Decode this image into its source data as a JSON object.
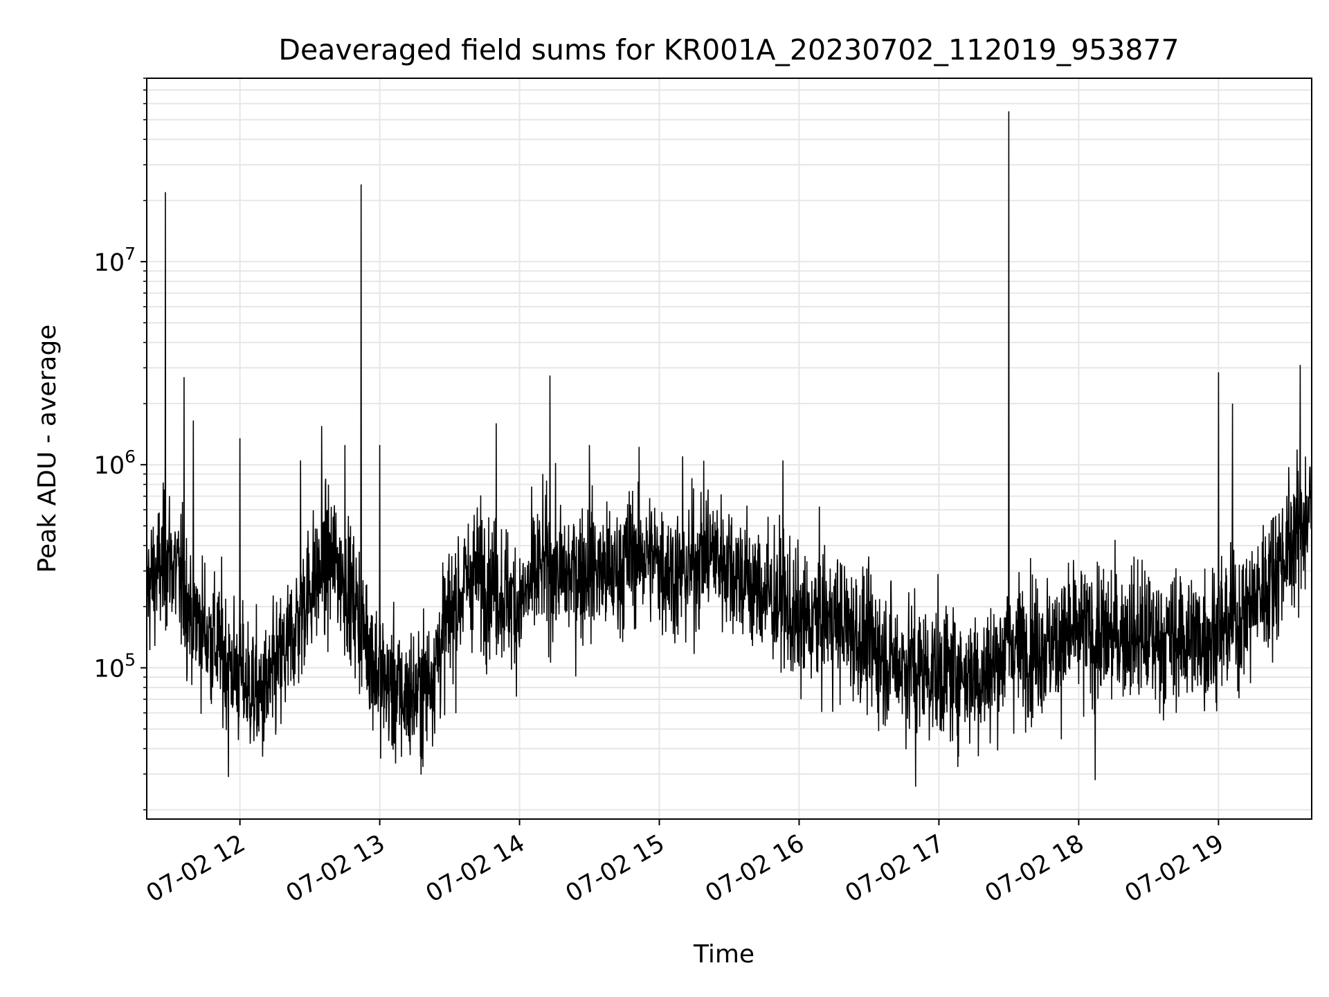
{
  "chart_data": {
    "type": "line",
    "title": "Deaveraged field sums for KR001A_20230702_112019_953877",
    "xlabel": "Time",
    "ylabel": "Peak ADU - average",
    "y_scale": "log",
    "ylim": [
      18000,
      80000000
    ],
    "xlim": [
      "2023-07-02 11:20",
      "2023-07-02 19:40"
    ],
    "grid": true,
    "x_tick_labels": [
      "07-02 12",
      "07-02 13",
      "07-02 14",
      "07-02 15",
      "07-02 16",
      "07-02 17",
      "07-02 18",
      "07-02 19"
    ],
    "x_ticks": [
      "2023-07-02 12:00",
      "2023-07-02 13:00",
      "2023-07-02 14:00",
      "2023-07-02 15:00",
      "2023-07-02 16:00",
      "2023-07-02 17:00",
      "2023-07-02 18:00",
      "2023-07-02 19:00"
    ],
    "y_ticks": [
      {
        "value": 100000,
        "base": "10",
        "exp": "5"
      },
      {
        "value": 1000000,
        "base": "10",
        "exp": "6"
      },
      {
        "value": 10000000,
        "base": "10",
        "exp": "7"
      }
    ],
    "series": [
      {
        "color": "#000000",
        "x": [
          "2023-07-02 11:20",
          "2023-07-02 11:30",
          "2023-07-02 11:40",
          "2023-07-02 11:50",
          "2023-07-02 12:00",
          "2023-07-02 12:10",
          "2023-07-02 12:20",
          "2023-07-02 12:30",
          "2023-07-02 12:40",
          "2023-07-02 12:50",
          "2023-07-02 13:00",
          "2023-07-02 13:10",
          "2023-07-02 13:20",
          "2023-07-02 13:30",
          "2023-07-02 13:40",
          "2023-07-02 13:50",
          "2023-07-02 14:00",
          "2023-07-02 14:10",
          "2023-07-02 14:20",
          "2023-07-02 14:30",
          "2023-07-02 14:40",
          "2023-07-02 14:50",
          "2023-07-02 15:00",
          "2023-07-02 15:10",
          "2023-07-02 15:20",
          "2023-07-02 15:30",
          "2023-07-02 15:40",
          "2023-07-02 15:50",
          "2023-07-02 16:00",
          "2023-07-02 16:10",
          "2023-07-02 16:20",
          "2023-07-02 16:30",
          "2023-07-02 16:40",
          "2023-07-02 16:50",
          "2023-07-02 17:00",
          "2023-07-02 17:10",
          "2023-07-02 17:20",
          "2023-07-02 17:30",
          "2023-07-02 17:40",
          "2023-07-02 17:50",
          "2023-07-02 18:00",
          "2023-07-02 18:10",
          "2023-07-02 18:20",
          "2023-07-02 18:30",
          "2023-07-02 18:40",
          "2023-07-02 18:50",
          "2023-07-02 19:00",
          "2023-07-02 19:10",
          "2023-07-02 19:20",
          "2023-07-02 19:30",
          "2023-07-02 19:40"
        ],
        "values": [
          250000,
          350000,
          180000,
          130000,
          90000,
          70000,
          120000,
          250000,
          350000,
          200000,
          90000,
          70000,
          80000,
          180000,
          300000,
          250000,
          200000,
          320000,
          280000,
          320000,
          280000,
          380000,
          330000,
          280000,
          380000,
          330000,
          250000,
          220000,
          160000,
          180000,
          160000,
          130000,
          110000,
          100000,
          95000,
          95000,
          90000,
          130000,
          130000,
          130000,
          150000,
          140000,
          150000,
          140000,
          140000,
          140000,
          150000,
          180000,
          250000,
          400000,
          600000
        ]
      }
    ],
    "spikes": [
      {
        "x": "2023-07-02 11:28",
        "value": 22000000
      },
      {
        "x": "2023-07-02 11:36",
        "value": 2700000
      },
      {
        "x": "2023-07-02 11:40",
        "value": 1650000
      },
      {
        "x": "2023-07-02 12:00",
        "value": 1350000
      },
      {
        "x": "2023-07-02 12:26",
        "value": 1050000
      },
      {
        "x": "2023-07-02 12:35",
        "value": 1550000
      },
      {
        "x": "2023-07-02 12:45",
        "value": 1250000
      },
      {
        "x": "2023-07-02 12:52",
        "value": 24000000
      },
      {
        "x": "2023-07-02 13:00",
        "value": 1250000
      },
      {
        "x": "2023-07-02 13:50",
        "value": 1600000
      },
      {
        "x": "2023-07-02 14:13",
        "value": 2750000
      },
      {
        "x": "2023-07-02 14:30",
        "value": 1250000
      },
      {
        "x": "2023-07-02 15:10",
        "value": 1100000
      },
      {
        "x": "2023-07-02 15:53",
        "value": 1050000
      },
      {
        "x": "2023-07-02 17:30",
        "value": 55000000
      },
      {
        "x": "2023-07-02 19:00",
        "value": 2850000
      },
      {
        "x": "2023-07-02 19:06",
        "value": 2000000
      },
      {
        "x": "2023-07-02 19:35",
        "value": 3100000
      }
    ],
    "dips": [
      {
        "x": "2023-07-02 11:55",
        "value": 29000
      },
      {
        "x": "2023-07-02 16:50",
        "value": 26000
      },
      {
        "x": "2023-07-02 18:07",
        "value": 28000
      }
    ]
  }
}
